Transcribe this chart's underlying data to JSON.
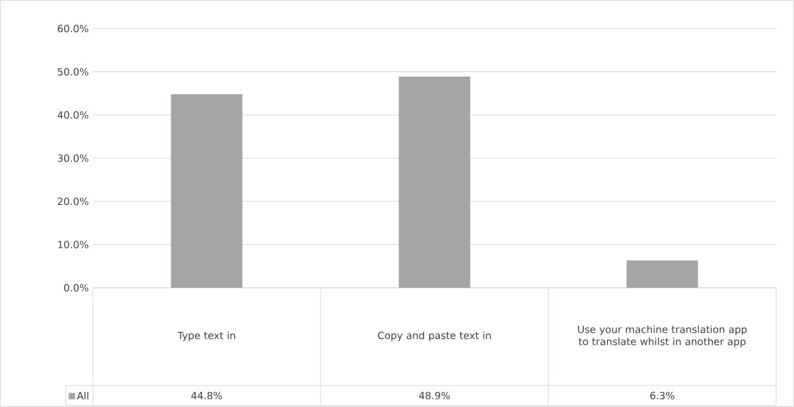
{
  "chart_data": {
    "type": "bar",
    "categories": [
      "Type text in",
      "Copy and paste text in",
      "Use your machine translation app to translate whilst in another app"
    ],
    "series": [
      {
        "name": "All",
        "color": "#a5a5a5",
        "values": [
          44.8,
          48.9,
          6.3
        ],
        "value_labels": [
          "44.8%",
          "48.9%",
          "6.3%"
        ]
      }
    ],
    "ylim": [
      0,
      60
    ],
    "yticks": [
      {
        "value": 0,
        "label": "0.0%"
      },
      {
        "value": 10,
        "label": "10.0%"
      },
      {
        "value": 20,
        "label": "20.0%"
      },
      {
        "value": 30,
        "label": "30.0%"
      },
      {
        "value": 40,
        "label": "40.0%"
      },
      {
        "value": 50,
        "label": "50.0%"
      },
      {
        "value": 60,
        "label": "60.0%"
      }
    ],
    "grid": "y"
  }
}
